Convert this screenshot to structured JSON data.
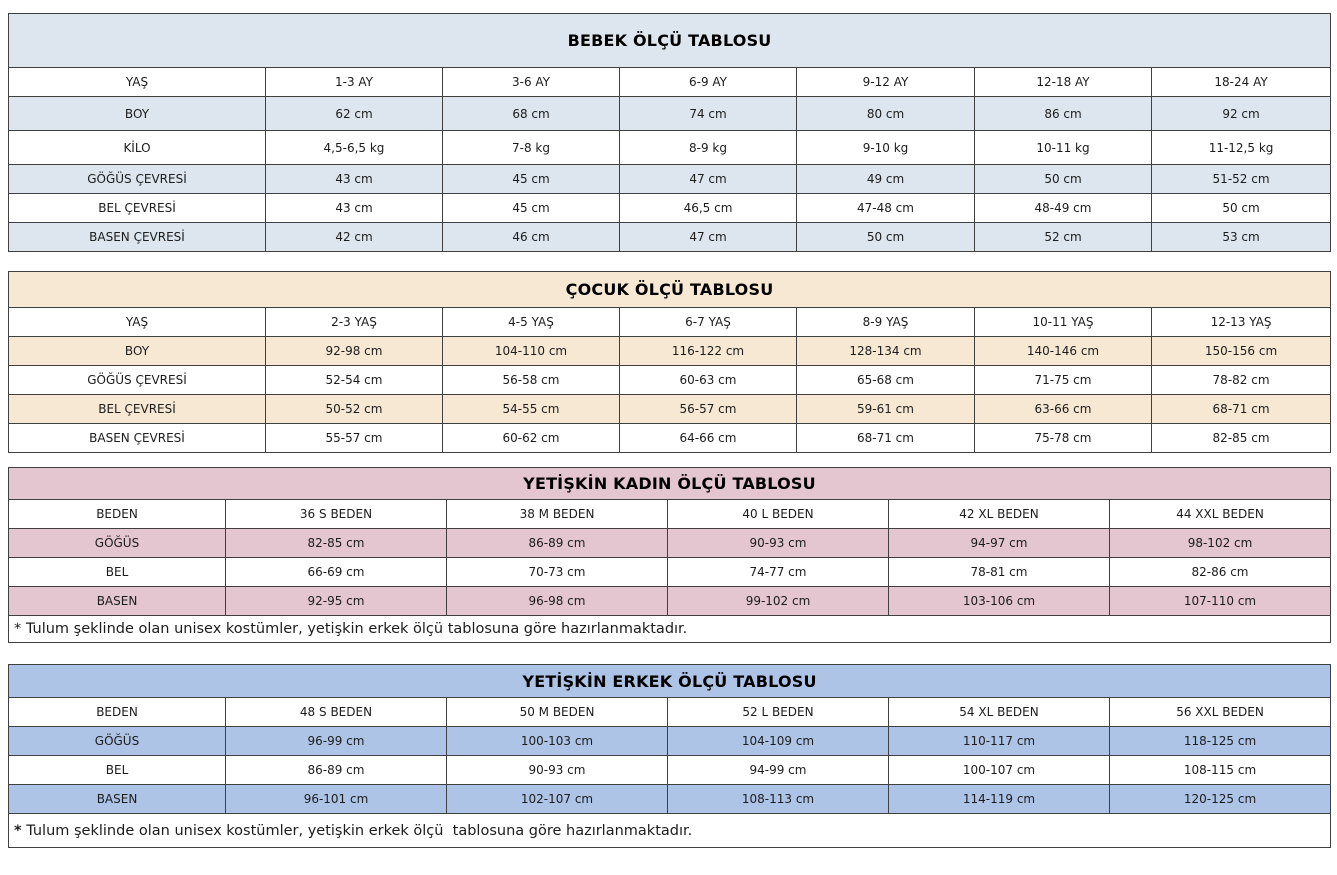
{
  "tables": [
    {
      "name": "bebek-olcu-tablosu",
      "title": "BEBEK ÖLÇÜ TABLOSU",
      "accent": "#dde6ee",
      "rows": [
        {
          "label": "YAŞ",
          "values": [
            "1-3 AY",
            "3-6 AY",
            "6-9 AY",
            "9-12 AY",
            "12-18 AY",
            "18-24 AY"
          ]
        },
        {
          "label": "BOY",
          "values": [
            "62 cm",
            "68 cm",
            "74 cm",
            "80 cm",
            "86 cm",
            "92 cm"
          ]
        },
        {
          "label": "KİLO",
          "values": [
            "4,5-6,5 kg",
            "7-8 kg",
            "8-9 kg",
            "9-10 kg",
            "10-11 kg",
            "11-12,5 kg"
          ]
        },
        {
          "label": "GÖĞÜS ÇEVRESİ",
          "values": [
            "43 cm",
            "45 cm",
            "47 cm",
            "49 cm",
            "50 cm",
            "51-52 cm"
          ]
        },
        {
          "label": "BEL ÇEVRESİ",
          "values": [
            "43 cm",
            "45 cm",
            "46,5 cm",
            "47-48 cm",
            "48-49 cm",
            "50 cm"
          ]
        },
        {
          "label": "BASEN ÇEVRESİ",
          "values": [
            "42 cm",
            "46 cm",
            "47 cm",
            "50 cm",
            "52 cm",
            "53 cm"
          ]
        }
      ],
      "note": null
    },
    {
      "name": "cocuk-olcu-tablosu",
      "title": "ÇOCUK ÖLÇÜ TABLOSU",
      "accent": "#f7e8d4",
      "rows": [
        {
          "label": "YAŞ",
          "values": [
            "2-3 YAŞ",
            "4-5 YAŞ",
            "6-7 YAŞ",
            "8-9 YAŞ",
            "10-11 YAŞ",
            "12-13 YAŞ"
          ]
        },
        {
          "label": "BOY",
          "values": [
            "92-98 cm",
            "104-110 cm",
            "116-122 cm",
            "128-134 cm",
            "140-146 cm",
            "150-156 cm"
          ]
        },
        {
          "label": "GÖĞÜS ÇEVRESİ",
          "values": [
            "52-54 cm",
            "56-58 cm",
            "60-63 cm",
            "65-68 cm",
            "71-75 cm",
            "78-82 cm"
          ]
        },
        {
          "label": "BEL ÇEVRESİ",
          "values": [
            "50-52 cm",
            "54-55 cm",
            "56-57 cm",
            "59-61 cm",
            "63-66 cm",
            "68-71 cm"
          ]
        },
        {
          "label": "BASEN ÇEVRESİ",
          "values": [
            "55-57 cm",
            "60-62 cm",
            "64-66 cm",
            "68-71 cm",
            "75-78 cm",
            "82-85 cm"
          ]
        }
      ],
      "note": null
    },
    {
      "name": "yetiskin-kadin-olcu-tablosu",
      "title": "YETİŞKİN KADIN ÖLÇÜ TABLOSU",
      "accent": "#e3c6d0",
      "rows": [
        {
          "label": "BEDEN",
          "values": [
            "36 S BEDEN",
            "38 M BEDEN",
            "40 L BEDEN",
            "42 XL BEDEN",
            "44 XXL BEDEN"
          ]
        },
        {
          "label": "GÖĞÜS",
          "values": [
            "82-85 cm",
            "86-89 cm",
            "90-93 cm",
            "94-97 cm",
            "98-102 cm"
          ]
        },
        {
          "label": "BEL",
          "values": [
            "66-69 cm",
            "70-73 cm",
            "74-77 cm",
            "78-81 cm",
            "82-86 cm"
          ]
        },
        {
          "label": "BASEN",
          "values": [
            "92-95 cm",
            "96-98 cm",
            "99-102 cm",
            "103-106 cm",
            "107-110 cm"
          ]
        }
      ],
      "note": {
        "marker": "*",
        "marker_bold": false,
        "text": " Tulum şeklinde olan unisex kostümler, yetişkin erkek ölçü tablosuna göre hazırlanmaktadır."
      }
    },
    {
      "name": "yetiskin-erkek-olcu-tablosu",
      "title": "YETİŞKİN ERKEK ÖLÇÜ TABLOSU",
      "accent": "#aec4e6",
      "rows": [
        {
          "label": "BEDEN",
          "values": [
            "48 S BEDEN",
            "50 M BEDEN",
            "52 L BEDEN",
            "54 XL BEDEN",
            "56 XXL BEDEN"
          ]
        },
        {
          "label": "GÖĞÜS",
          "values": [
            "96-99 cm",
            "100-103 cm",
            "104-109 cm",
            "110-117 cm",
            "118-125 cm"
          ]
        },
        {
          "label": "BEL",
          "values": [
            "86-89 cm",
            "90-93 cm",
            "94-99 cm",
            "100-107 cm",
            "108-115 cm"
          ]
        },
        {
          "label": "BASEN",
          "values": [
            "96-101 cm",
            "102-107 cm",
            "108-113 cm",
            "114-119 cm",
            "120-125 cm"
          ]
        }
      ],
      "note": {
        "marker": "*",
        "marker_bold": true,
        "text": " Tulum şeklinde olan unisex kostümler, yetişkin erkek ölçü  tablosuna göre hazırlanmaktadır."
      }
    }
  ]
}
